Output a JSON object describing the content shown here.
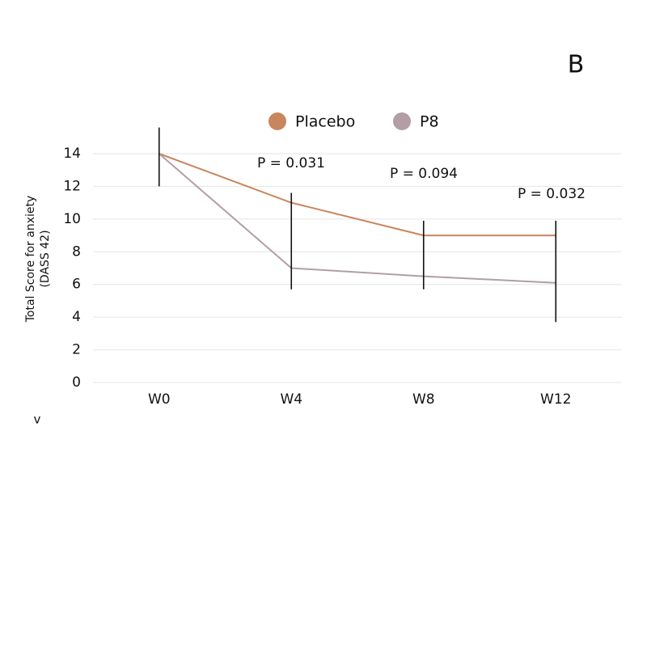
{
  "chart_data": {
    "type": "line",
    "panel_label": "B",
    "footnote": "v",
    "y_label": [
      "Total Score for anxiety",
      "(DASS 42)"
    ],
    "categories": [
      "W0",
      "W4",
      "W8",
      "W12"
    ],
    "series": [
      {
        "name": "Placebo",
        "color": "#c8865e",
        "values": [
          14,
          11,
          9,
          9
        ]
      },
      {
        "name": "P8",
        "color": "#b39ea5",
        "values": [
          14,
          7,
          6.5,
          6.1
        ]
      }
    ],
    "error_low": [
      12,
      5.7,
      5.7,
      3.7
    ],
    "error_high": [
      15.6,
      11.6,
      9.9,
      9.9
    ],
    "annotations": [
      "P = 0.031",
      "P = 0.094",
      "P = 0.032"
    ],
    "ylim": [
      0,
      14
    ],
    "yticks": [
      0,
      2,
      4,
      6,
      8,
      10,
      12,
      14
    ],
    "grid": true
  }
}
